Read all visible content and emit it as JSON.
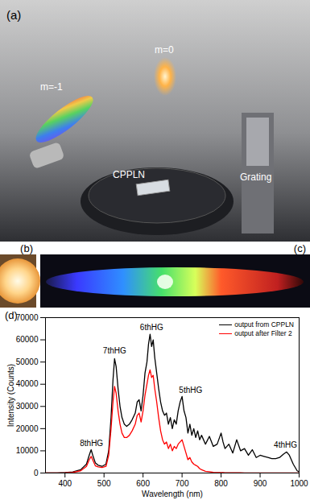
{
  "figure": {
    "a": {
      "label": "(a)",
      "texts": [
        "m=0",
        "m=-1",
        "CPPLN",
        "Grating"
      ]
    },
    "b": {
      "label": "(b)"
    },
    "c": {
      "label": "(c)"
    }
  },
  "chart_data": {
    "type": "line",
    "title": "(d)",
    "x_label": "Wavelength (nm)",
    "y_label": "Intensity (Counts)",
    "xlim": [
      350,
      1000
    ],
    "xticks": [
      400,
      500,
      600,
      700,
      800,
      900,
      1000
    ],
    "ylim": [
      0,
      70000
    ],
    "yticks": [
      0,
      10000,
      20000,
      30000,
      40000,
      50000,
      60000,
      70000
    ],
    "grid": false,
    "legend": "top-right",
    "x": [
      350,
      380,
      400,
      420,
      440,
      455,
      462,
      467,
      472,
      478,
      485,
      495,
      505,
      512,
      518,
      523,
      527,
      531,
      536,
      541,
      546,
      552,
      558,
      565,
      572,
      580,
      585,
      590,
      595,
      600,
      605,
      610,
      614,
      618,
      622,
      626,
      630,
      635,
      640,
      645,
      650,
      655,
      660,
      665,
      670,
      675,
      680,
      685,
      690,
      695,
      700,
      705,
      710,
      715,
      720,
      725,
      730,
      735,
      740,
      745,
      750,
      760,
      770,
      780,
      790,
      800,
      805,
      810,
      820,
      830,
      840,
      850,
      860,
      870,
      880,
      890,
      900,
      910,
      920,
      930,
      940,
      950,
      960,
      968,
      975,
      985,
      995,
      1000
    ],
    "series": [
      {
        "name": "output from CPPLN",
        "color": "#000000",
        "values": [
          0,
          0,
          200,
          500,
          1500,
          4000,
          8000,
          10500,
          7500,
          4500,
          3500,
          3000,
          4000,
          10000,
          25000,
          42000,
          51500,
          48000,
          38000,
          30000,
          25000,
          22000,
          21000,
          22000,
          24000,
          27000,
          32000,
          33000,
          28000,
          35000,
          45000,
          50000,
          58000,
          62500,
          57000,
          60000,
          52000,
          45000,
          38000,
          32000,
          28000,
          26000,
          27000,
          22000,
          25000,
          20000,
          24000,
          22000,
          28000,
          32000,
          34500,
          28000,
          25000,
          18000,
          22000,
          17000,
          20000,
          16000,
          19000,
          15000,
          17000,
          13000,
          16500,
          12000,
          13000,
          18000,
          14000,
          11000,
          13000,
          9000,
          15000,
          10000,
          11000,
          8000,
          10500,
          7000,
          8000,
          7500,
          7000,
          6500,
          6500,
          7000,
          8500,
          9500,
          8000,
          4000,
          1000,
          500
        ]
      },
      {
        "name": "output after Filter 2",
        "color": "#ff0000",
        "values": [
          0,
          0,
          100,
          300,
          1000,
          3000,
          6000,
          7500,
          5500,
          3200,
          2800,
          2500,
          3000,
          8000,
          20000,
          32000,
          39000,
          36000,
          28000,
          22000,
          18000,
          16000,
          16000,
          17000,
          19000,
          22000,
          26000,
          27000,
          23000,
          28000,
          35000,
          40000,
          44000,
          46500,
          43000,
          44000,
          38000,
          32000,
          25000,
          19000,
          15000,
          13000,
          14000,
          11000,
          13000,
          10000,
          12000,
          11000,
          13000,
          14000,
          15000,
          12000,
          9000,
          6000,
          7000,
          5000,
          4000,
          3500,
          3000,
          2000,
          1500,
          800,
          600,
          300,
          250,
          200,
          200,
          150,
          150,
          100,
          100,
          100,
          80,
          60,
          50,
          50,
          50,
          40,
          30,
          30,
          20,
          20,
          20,
          10,
          10,
          0,
          0,
          0
        ]
      }
    ],
    "annotations": [
      {
        "text": "8thHG",
        "x": 468,
        "y": 12000
      },
      {
        "text": "7thHG",
        "x": 527,
        "y": 54000
      },
      {
        "text": "6thHG",
        "x": 622,
        "y": 64500
      },
      {
        "text": "5thHG",
        "x": 722,
        "y": 36000
      },
      {
        "text": "4thHG",
        "x": 965,
        "y": 11500
      }
    ]
  }
}
